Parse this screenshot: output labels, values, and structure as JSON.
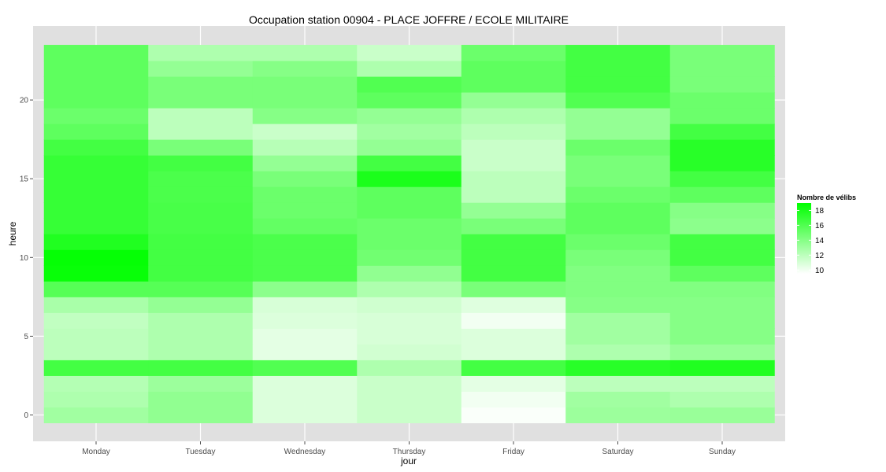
{
  "chart_data": {
    "type": "heatmap",
    "title": "Occupation station 00904 - PLACE JOFFRE / ECOLE MILITAIRE",
    "xlabel": "jour",
    "ylabel": "heure",
    "categories": [
      "Monday",
      "Tuesday",
      "Wednesday",
      "Thursday",
      "Friday",
      "Saturday",
      "Sunday"
    ],
    "hours": [
      0,
      1,
      2,
      3,
      4,
      5,
      6,
      7,
      8,
      9,
      10,
      11,
      12,
      13,
      14,
      15,
      16,
      17,
      18,
      19,
      20,
      21,
      22,
      23
    ],
    "y_ticks": [
      0,
      5,
      10,
      15,
      20
    ],
    "ylim": [
      -0.5,
      23.5
    ],
    "grid": true,
    "values": [
      [
        13.0,
        13.6,
        10.8,
        11.5,
        9.7,
        13.2,
        13.3
      ],
      [
        12.5,
        13.6,
        10.8,
        11.5,
        10.0,
        13.0,
        12.5
      ],
      [
        12.3,
        13.2,
        10.8,
        11.5,
        10.5,
        12.0,
        12.0
      ],
      [
        16.5,
        16.5,
        16.0,
        12.5,
        16.5,
        17.5,
        17.8
      ],
      [
        12.0,
        12.5,
        10.5,
        11.2,
        10.8,
        12.5,
        13.3
      ],
      [
        12.0,
        12.5,
        10.5,
        11.0,
        10.8,
        13.0,
        14.0
      ],
      [
        11.8,
        12.5,
        10.8,
        11.0,
        10.0,
        13.0,
        14.0
      ],
      [
        12.7,
        13.5,
        11.0,
        11.3,
        10.7,
        14.0,
        14.0
      ],
      [
        15.8,
        15.8,
        13.8,
        12.5,
        14.5,
        14.2,
        14.2
      ],
      [
        18.7,
        16.5,
        16.2,
        13.6,
        16.5,
        14.2,
        15.5
      ],
      [
        18.8,
        16.5,
        16.2,
        14.8,
        16.5,
        14.5,
        16.5
      ],
      [
        17.8,
        16.5,
        16.2,
        15.0,
        16.5,
        15.0,
        16.5
      ],
      [
        17.0,
        16.3,
        15.3,
        15.0,
        14.5,
        15.5,
        13.8
      ],
      [
        17.0,
        16.3,
        15.0,
        15.5,
        13.5,
        15.5,
        14.0
      ],
      [
        17.0,
        16.2,
        15.0,
        15.5,
        12.0,
        15.0,
        15.5
      ],
      [
        17.0,
        16.2,
        14.5,
        18.0,
        12.0,
        14.5,
        16.5
      ],
      [
        17.0,
        16.5,
        13.5,
        16.5,
        11.5,
        14.5,
        17.5
      ],
      [
        16.5,
        14.5,
        12.2,
        13.5,
        11.5,
        15.0,
        17.5
      ],
      [
        15.5,
        12.0,
        11.5,
        13.0,
        12.0,
        13.5,
        16.5
      ],
      [
        15.0,
        12.0,
        14.0,
        13.5,
        12.5,
        13.5,
        15.0
      ],
      [
        15.5,
        14.5,
        14.5,
        15.5,
        13.5,
        16.0,
        15.0
      ],
      [
        15.5,
        14.5,
        14.5,
        16.0,
        15.5,
        16.5,
        14.5
      ],
      [
        15.5,
        13.5,
        14.0,
        12.5,
        15.5,
        16.5,
        14.5
      ],
      [
        15.5,
        12.5,
        12.5,
        11.5,
        15.0,
        16.5,
        14.5
      ]
    ],
    "legend": {
      "title": "Nombre de vélibs",
      "placement": "right",
      "ticks": [
        10,
        12,
        14,
        16,
        18
      ],
      "range": [
        9.5,
        19
      ],
      "low_color": "#ffffff",
      "high_color": "#00ff00"
    },
    "colors": {
      "panel": "#e0e0e0",
      "grid_major": "#ffffff",
      "tick": "#4d4d4d"
    }
  }
}
